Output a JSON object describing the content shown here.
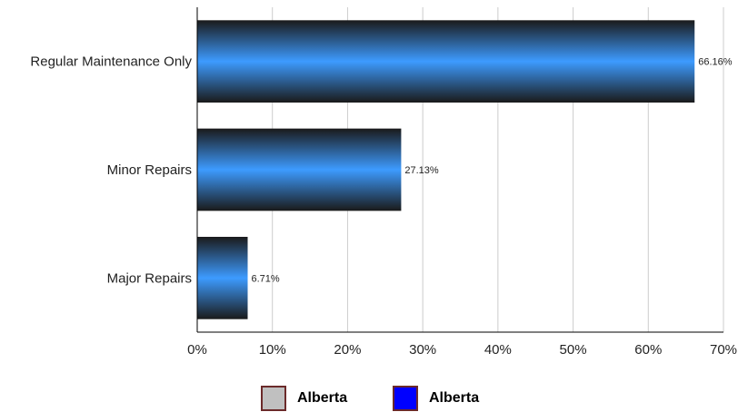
{
  "chart_data": {
    "type": "bar",
    "orientation": "horizontal",
    "categories": [
      "Regular Maintenance Only",
      "Minor Repairs",
      "Major Repairs"
    ],
    "series": [
      {
        "name": "Alberta",
        "values": [
          66.16,
          27.13,
          6.71
        ],
        "labels": [
          "66.16%",
          "27.13%",
          "6.71%"
        ]
      }
    ],
    "xlim": [
      0,
      70
    ],
    "xticks": [
      "0%",
      "10%",
      "20%",
      "30%",
      "40%",
      "50%",
      "60%",
      "70%"
    ],
    "grid": true,
    "bar_colors": {
      "edge": "#1a1a1a",
      "center": "#3d9bff"
    },
    "legend_position": "bottom-center"
  },
  "legend": [
    {
      "label": "Alberta",
      "color": "#c0c0c0"
    },
    {
      "label": "Alberta",
      "color": "#0000ff"
    }
  ]
}
